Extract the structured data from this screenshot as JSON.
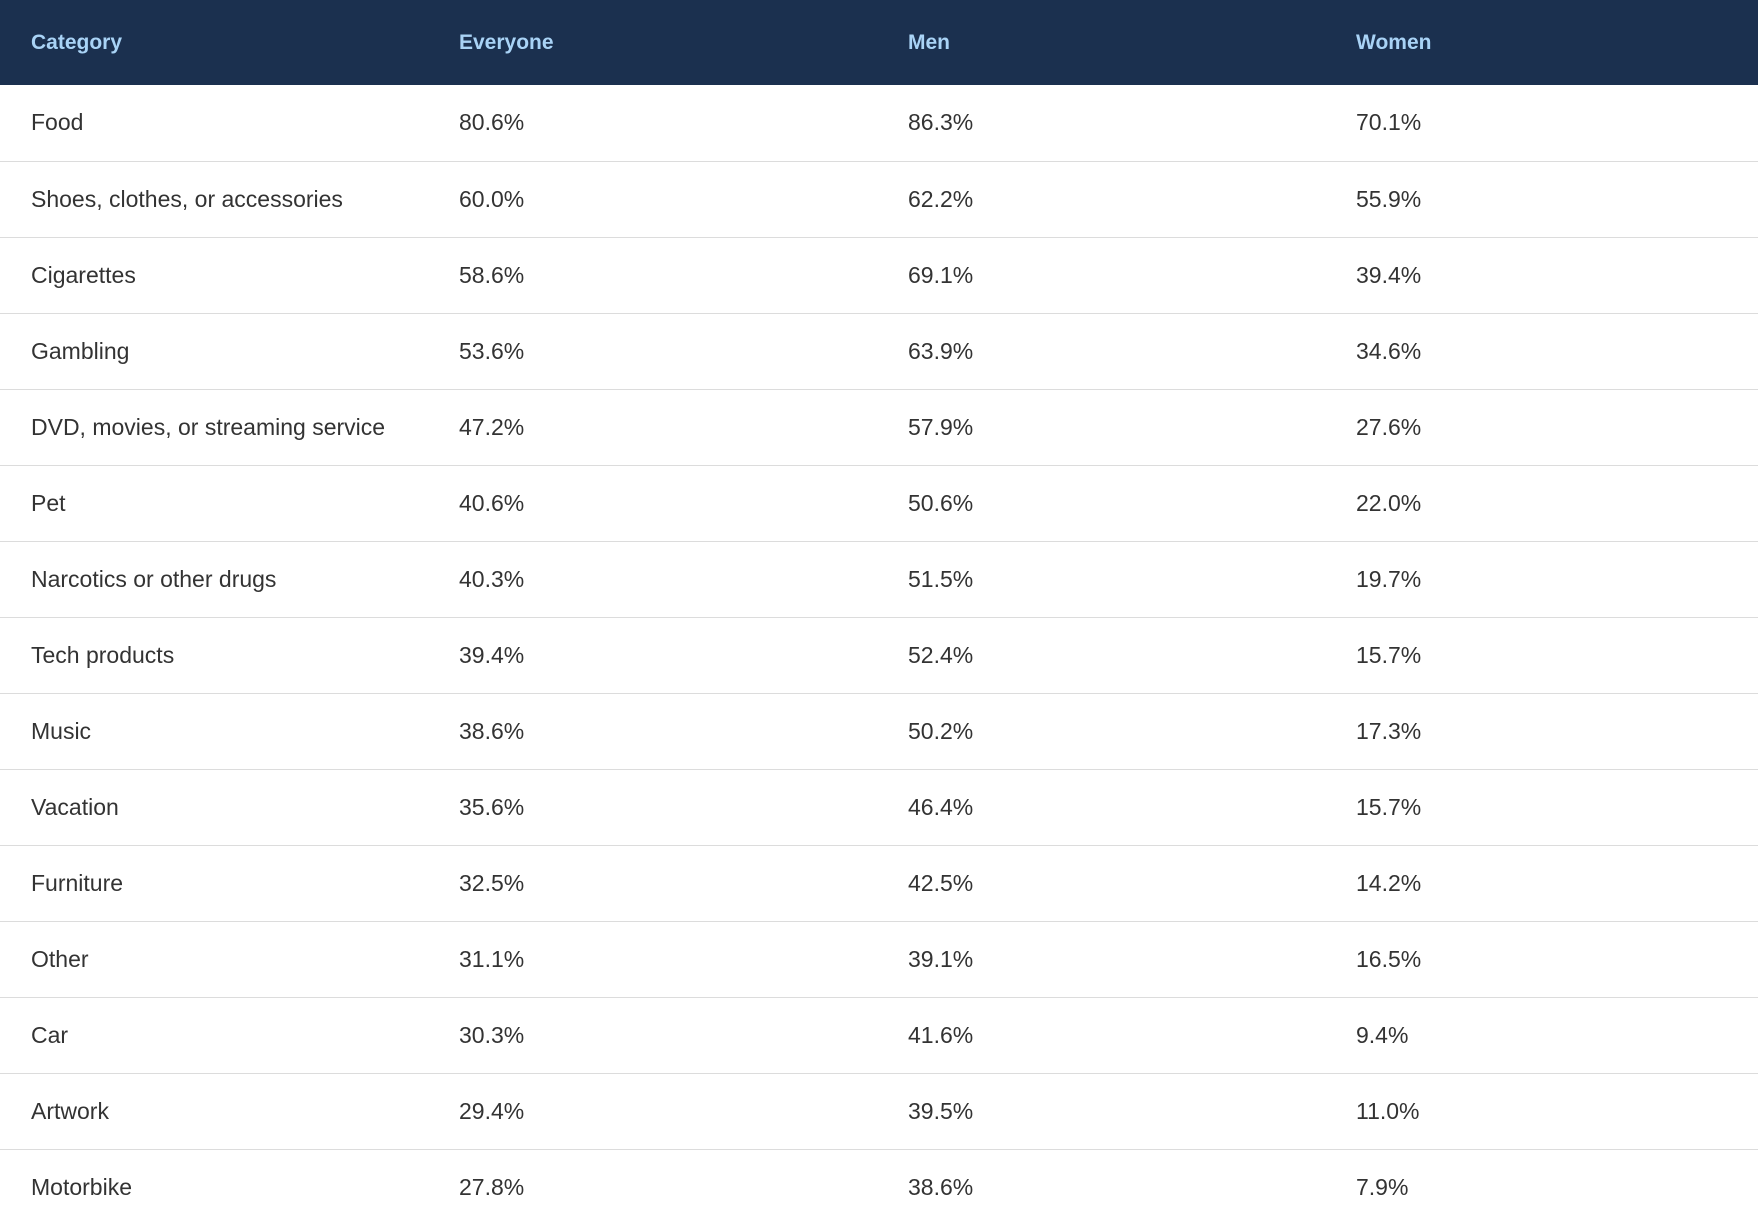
{
  "table": {
    "headers": [
      "Category",
      "Everyone",
      "Men",
      "Women"
    ],
    "rows": [
      [
        "Food",
        "80.6%",
        "86.3%",
        "70.1%"
      ],
      [
        "Shoes, clothes, or accessories",
        "60.0%",
        "62.2%",
        "55.9%"
      ],
      [
        "Cigarettes",
        "58.6%",
        "69.1%",
        "39.4%"
      ],
      [
        "Gambling",
        "53.6%",
        "63.9%",
        "34.6%"
      ],
      [
        "DVD, movies, or streaming service",
        "47.2%",
        "57.9%",
        "27.6%"
      ],
      [
        "Pet",
        "40.6%",
        "50.6%",
        "22.0%"
      ],
      [
        "Narcotics or other drugs",
        "40.3%",
        "51.5%",
        "19.7%"
      ],
      [
        "Tech products",
        "39.4%",
        "52.4%",
        "15.7%"
      ],
      [
        "Music",
        "38.6%",
        "50.2%",
        "17.3%"
      ],
      [
        "Vacation",
        "35.6%",
        "46.4%",
        "15.7%"
      ],
      [
        "Furniture",
        "32.5%",
        "42.5%",
        "14.2%"
      ],
      [
        "Other",
        "31.1%",
        "39.1%",
        "16.5%"
      ],
      [
        "Car",
        "30.3%",
        "41.6%",
        "9.4%"
      ],
      [
        "Artwork",
        "29.4%",
        "39.5%",
        "11.0%"
      ],
      [
        "Motorbike",
        "27.8%",
        "38.6%",
        "7.9%"
      ]
    ]
  },
  "colors": {
    "header_background": "#1b304f",
    "header_text": "#a9d3f6",
    "body_text": "#333333",
    "row_divider": "#dcdcdc"
  }
}
